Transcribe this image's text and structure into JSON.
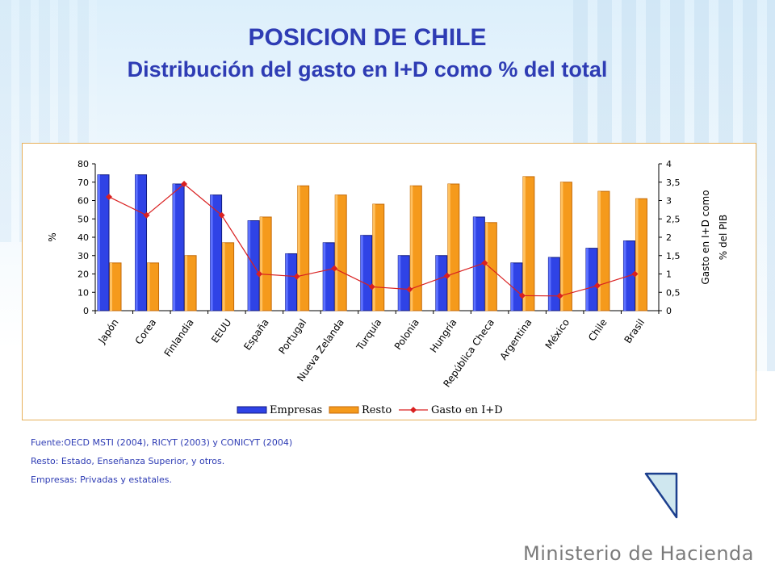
{
  "slide": {
    "title": "POSICION DE CHILE",
    "subtitle": "Distribución del gasto en I+D como % del total",
    "notes": [
      "Fuente:OECD MSTI (2004), RICYT (2003) y CONICYT (2004)",
      "Resto: Estado, Enseñanza Superior, y otros.",
      "Empresas: Privadas y estatales."
    ],
    "footer_brand": "Ministerio de Hacienda",
    "nav_icon": "triangle-next-icon"
  },
  "colors": {
    "title": "#2e3cb4",
    "empresas": "#2f43e6",
    "resto": "#f59a1c",
    "gasto": "#d92020",
    "frame": "#e7b05a"
  },
  "chart_data": {
    "type": "bar",
    "categories": [
      "Japón",
      "Corea",
      "Finlandia",
      "EEUU",
      "España",
      "Portugal",
      "Nueva Zelanda",
      "Turquía",
      "Polonia",
      "Hungría",
      "República Checa",
      "Argentina",
      "México",
      "Chile",
      "Brasil"
    ],
    "series": [
      {
        "name": "Empresas",
        "type": "bar",
        "axis": "left",
        "values": [
          74,
          74,
          69,
          63,
          49,
          31,
          37,
          41,
          30,
          30,
          51,
          26,
          29,
          34,
          38
        ]
      },
      {
        "name": "Resto",
        "type": "bar",
        "axis": "left",
        "values": [
          26,
          26,
          30,
          37,
          51,
          68,
          63,
          58,
          68,
          69,
          48,
          73,
          70,
          65,
          61
        ]
      },
      {
        "name": "Gasto en I+D",
        "type": "line",
        "axis": "right",
        "values": [
          3.1,
          2.6,
          3.45,
          2.6,
          1.0,
          0.93,
          1.15,
          0.65,
          0.58,
          0.95,
          1.3,
          0.41,
          0.4,
          0.68,
          1.0
        ]
      }
    ],
    "ylabel": "%",
    "y2label_lines": [
      "Gasto en I+D como",
      "% del PIB"
    ],
    "ylim": [
      0,
      80
    ],
    "yticks": [
      "0",
      "10",
      "20",
      "30",
      "40",
      "50",
      "60",
      "70",
      "80"
    ],
    "y2lim": [
      0,
      4
    ],
    "y2ticks": [
      "0",
      "0,5",
      "1",
      "1,5",
      "2",
      "2,5",
      "3",
      "3,5",
      "4"
    ],
    "legend": [
      "Empresas",
      "Resto",
      "Gasto en I+D"
    ],
    "legend_position": "bottom",
    "grid": false
  }
}
